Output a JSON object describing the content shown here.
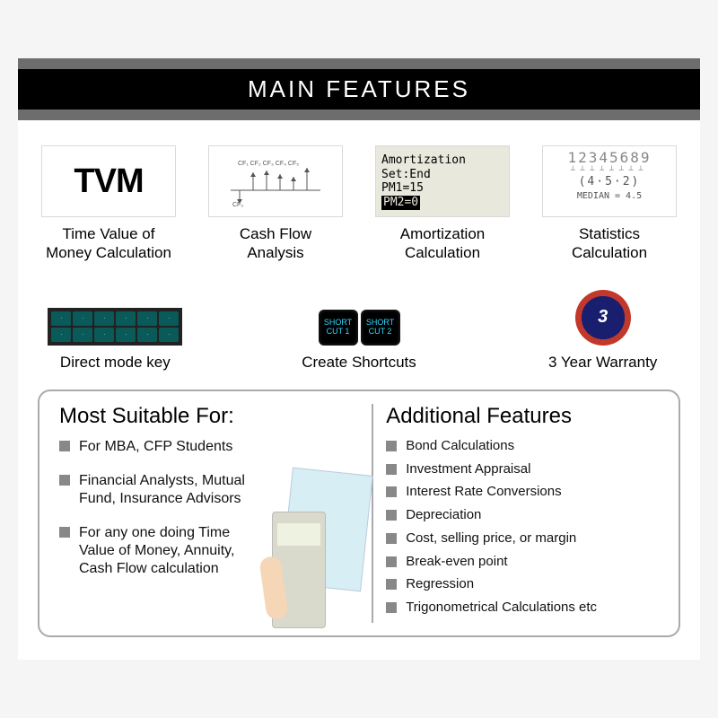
{
  "header": {
    "title": "MAIN FEATURES"
  },
  "features_row1": [
    {
      "label": "Time Value of\nMoney Calculation",
      "icon_text": "TVM"
    },
    {
      "label": "Cash Flow\nAnalysis"
    },
    {
      "label": "Amortization\nCalculation",
      "screen": {
        "line1": "Amortization",
        "line2": "Set:End",
        "line3": "PM1=15",
        "line4": "PM2=0"
      }
    },
    {
      "label": "Statistics\nCalculation",
      "stats": {
        "digits": "12345689",
        "mid": "(4·5·2)",
        "median": "MEDIAN = 4.5"
      }
    }
  ],
  "features_row2": [
    {
      "label": "Direct mode key"
    },
    {
      "label": "Create Shortcuts",
      "key1": "SHORT\nCUT 1",
      "key2": "SHORT\nCUT 2"
    },
    {
      "label": "3 Year Warranty",
      "badge_text": "3"
    }
  ],
  "suitable": {
    "title": "Most Suitable For:",
    "items": [
      "For MBA, CFP Students",
      "Financial Analysts, Mutual Fund, Insurance Advisors",
      "For any one doing Time Value of Money,  Annuity, Cash Flow calculation"
    ]
  },
  "additional": {
    "title": "Additional Features",
    "items": [
      "Bond Calculations",
      "Investment Appraisal",
      "Interest Rate Conversions",
      "Depreciation",
      "Cost, selling price, or margin",
      "Break-even point",
      "Regression",
      "Trigonometrical Calculations etc"
    ]
  },
  "colors": {
    "stripe": "#6d6d6d",
    "title_bg": "#000000",
    "title_fg": "#ffffff",
    "bullet": "#888888",
    "border": "#aaaaaa"
  }
}
